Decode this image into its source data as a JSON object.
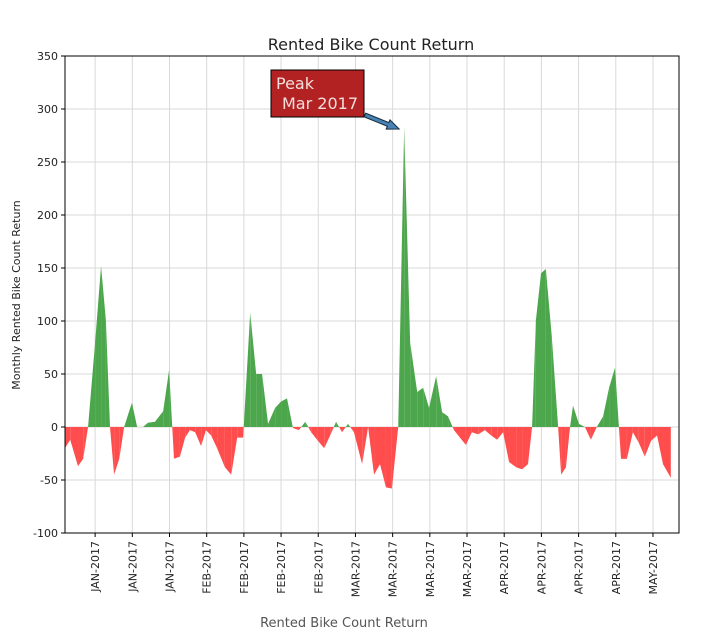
{
  "chart_data": {
    "type": "area",
    "title": "Rented Bike Count Return",
    "ylabel": "Monthly Rented Bike Count Return",
    "xlabel": "Rented Bike Count Return",
    "annotation": [
      "Peak",
      "Mar 2017"
    ],
    "positive_color": "#4ca64c",
    "negative_color": "#ff4d4d",
    "annotation_color": "#b22222",
    "grid": true,
    "x": [
      -8.1,
      -6.7,
      -4.6,
      -3.2,
      -1.9,
      0,
      1.6,
      2.9,
      4.0,
      5.1,
      6.5,
      7.8,
      9.9,
      11.3,
      12.9,
      14.2,
      16.1,
      18.3,
      19.9,
      21.2,
      22.8,
      24.2,
      25.5,
      26.9,
      28.5,
      29.8,
      31.2,
      32.8,
      34.9,
      36.6,
      38.2,
      39.8,
      41.7,
      43.3,
      44.9,
      46.5,
      48.4,
      50.0,
      51.6,
      53.2,
      54.8,
      56.5,
      58.1,
      59.9,
      61.6,
      63.2,
      64.8,
      66.4,
      68.0,
      69.6,
      71.8,
      73.4,
      75.0,
      76.6,
      78.2,
      79.8,
      81.5,
      83.1,
      84.7,
      86.6,
      88.2,
      89.8,
      91.7,
      93.3,
      94.9,
      96.5,
      98.1,
      99.7,
      101.3,
      103.0,
      104.8,
      106.5,
      108.1,
      109.7,
      111.3,
      113.2,
      114.8,
      116.4,
      117.5,
      118.5,
      119.9,
      121.2,
      122.8,
      124.5,
      125.3,
      126.6,
      127.7,
      128.5,
      130.1,
      131.7,
      133.3,
      134.9,
      136.6,
      138.2,
      139.8,
      141.4,
      143.0,
      144.6,
      146.2,
      147.8,
      149.5,
      151.1,
      152.7,
      154.8
    ],
    "values": [
      -20,
      -12,
      -37,
      -30,
      0,
      80,
      152,
      100,
      0,
      -45,
      -30,
      0,
      23,
      0,
      0,
      4,
      5,
      15,
      54,
      -30,
      -28,
      -10,
      -3,
      -5,
      -18,
      -3,
      -8,
      -20,
      -38,
      -45,
      -10,
      -10,
      108,
      50,
      50,
      3,
      18,
      24,
      27,
      -1,
      -3,
      5,
      -5,
      -13,
      -20,
      -8,
      5,
      -5,
      3,
      -5,
      -35,
      0,
      -45,
      -35,
      -57,
      -58,
      0,
      283,
      80,
      33,
      37,
      18,
      48,
      14,
      10,
      -3,
      -10,
      -17,
      -5,
      -7,
      -3,
      -8,
      -12,
      -5,
      -33,
      -38,
      -40,
      -35,
      0,
      100,
      145,
      149,
      85,
      0,
      -45,
      -38,
      0,
      20,
      3,
      0,
      -12,
      0,
      10,
      37,
      56,
      -30,
      -30,
      -5,
      -15,
      -28,
      -13,
      -8,
      -35,
      -48
    ],
    "xlim": [
      -8.1,
      157
    ],
    "ylim": [
      -100,
      350
    ],
    "yticks": [
      -100,
      -50,
      0,
      50,
      100,
      150,
      200,
      250,
      300,
      350
    ],
    "xticks": [
      {
        "value": 0,
        "label": "JAN-2017"
      },
      {
        "value": 10,
        "label": "JAN-2017"
      },
      {
        "value": 20,
        "label": "JAN-2017"
      },
      {
        "value": 30,
        "label": "FEB-2017"
      },
      {
        "value": 40,
        "label": "FEB-2017"
      },
      {
        "value": 50,
        "label": "FEB-2017"
      },
      {
        "value": 60,
        "label": "FEB-2017"
      },
      {
        "value": 70,
        "label": "MAR-2017"
      },
      {
        "value": 80,
        "label": "MAR-2017"
      },
      {
        "value": 90,
        "label": "MAR-2017"
      },
      {
        "value": 100,
        "label": "MAR-2017"
      },
      {
        "value": 110,
        "label": "APR-2017"
      },
      {
        "value": 120,
        "label": "APR-2017"
      },
      {
        "value": 130,
        "label": "APR-2017"
      },
      {
        "value": 140,
        "label": "APR-2017"
      },
      {
        "value": 150,
        "label": "MAY-2017"
      }
    ]
  }
}
